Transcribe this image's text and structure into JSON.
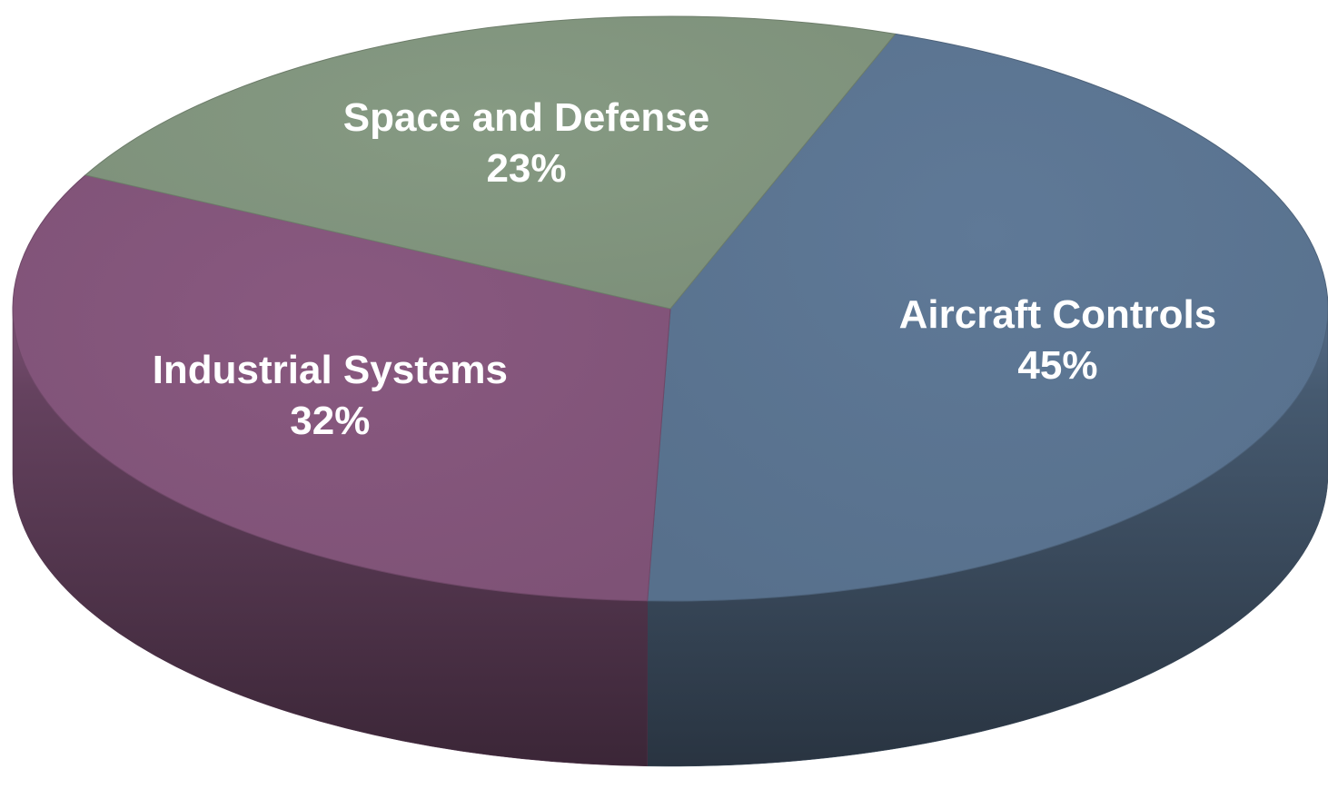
{
  "chart_data": {
    "type": "pie",
    "style": "3d",
    "title": "",
    "slices": [
      {
        "name": "Aircraft Controls",
        "value": 45,
        "label": "45%",
        "color": "#5a7390"
      },
      {
        "name": "Industrial Systems",
        "value": 32,
        "label": "32%",
        "color": "#82557a"
      },
      {
        "name": "Space and Defense",
        "value": 23,
        "label": "23%",
        "color": "#80937d"
      }
    ]
  }
}
